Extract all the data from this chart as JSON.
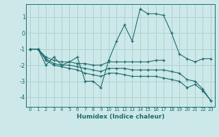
{
  "xlabel": "Humidex (Indice chaleur)",
  "bg_color": "#cce8e8",
  "grid_color": "#aacccc",
  "line_color": "#1e6b6b",
  "xlim": [
    -0.5,
    23.5
  ],
  "ylim": [
    -4.6,
    1.8
  ],
  "xticks": [
    0,
    1,
    2,
    3,
    4,
    5,
    6,
    7,
    8,
    9,
    10,
    11,
    12,
    13,
    14,
    15,
    16,
    17,
    18,
    19,
    20,
    21,
    22,
    23
  ],
  "yticks": [
    -4,
    -3,
    -2,
    -1,
    0,
    1
  ],
  "series": [
    {
      "x": [
        0,
        1,
        2,
        3,
        4,
        5,
        6,
        7,
        8,
        9,
        10,
        11,
        12,
        13,
        14,
        15,
        16,
        17,
        18,
        19,
        20,
        21,
        22,
        23
      ],
      "y": [
        -1.0,
        -1.0,
        -2.0,
        -1.5,
        -2.0,
        -1.8,
        -1.5,
        -3.0,
        -3.0,
        -3.4,
        -1.7,
        -0.5,
        0.5,
        -0.5,
        1.5,
        1.2,
        1.2,
        1.1,
        0.0,
        -1.3,
        -1.6,
        -1.8,
        -1.6,
        -1.6
      ]
    },
    {
      "x": [
        0,
        1,
        2,
        3,
        4,
        5,
        6,
        7,
        8,
        9,
        10,
        11,
        12,
        13,
        14,
        15,
        16,
        17
      ],
      "y": [
        -1.0,
        -1.0,
        -1.5,
        -1.7,
        -1.8,
        -1.8,
        -1.9,
        -1.9,
        -2.0,
        -2.0,
        -1.8,
        -1.8,
        -1.8,
        -1.8,
        -1.8,
        -1.8,
        -1.7,
        -1.7
      ]
    },
    {
      "x": [
        0,
        1,
        2,
        3,
        4,
        5,
        6,
        7,
        8,
        9,
        10,
        11,
        12,
        13,
        14,
        15,
        16,
        17,
        18,
        19,
        20,
        21,
        22,
        23
      ],
      "y": [
        -1.0,
        -1.0,
        -1.6,
        -1.9,
        -2.0,
        -2.0,
        -2.1,
        -2.2,
        -2.3,
        -2.4,
        -2.2,
        -2.2,
        -2.2,
        -2.3,
        -2.3,
        -2.3,
        -2.3,
        -2.3,
        -2.4,
        -2.5,
        -2.9,
        -3.0,
        -3.5,
        -4.2
      ]
    },
    {
      "x": [
        0,
        1,
        2,
        3,
        4,
        5,
        6,
        7,
        8,
        9,
        10,
        11,
        12,
        13,
        14,
        15,
        16,
        17,
        18,
        19,
        20,
        21,
        22,
        23
      ],
      "y": [
        -1.0,
        -1.0,
        -1.7,
        -2.0,
        -2.1,
        -2.2,
        -2.3,
        -2.5,
        -2.6,
        -2.7,
        -2.5,
        -2.5,
        -2.6,
        -2.7,
        -2.7,
        -2.7,
        -2.7,
        -2.8,
        -2.9,
        -3.0,
        -3.4,
        -3.2,
        -3.6,
        -4.2
      ]
    }
  ]
}
